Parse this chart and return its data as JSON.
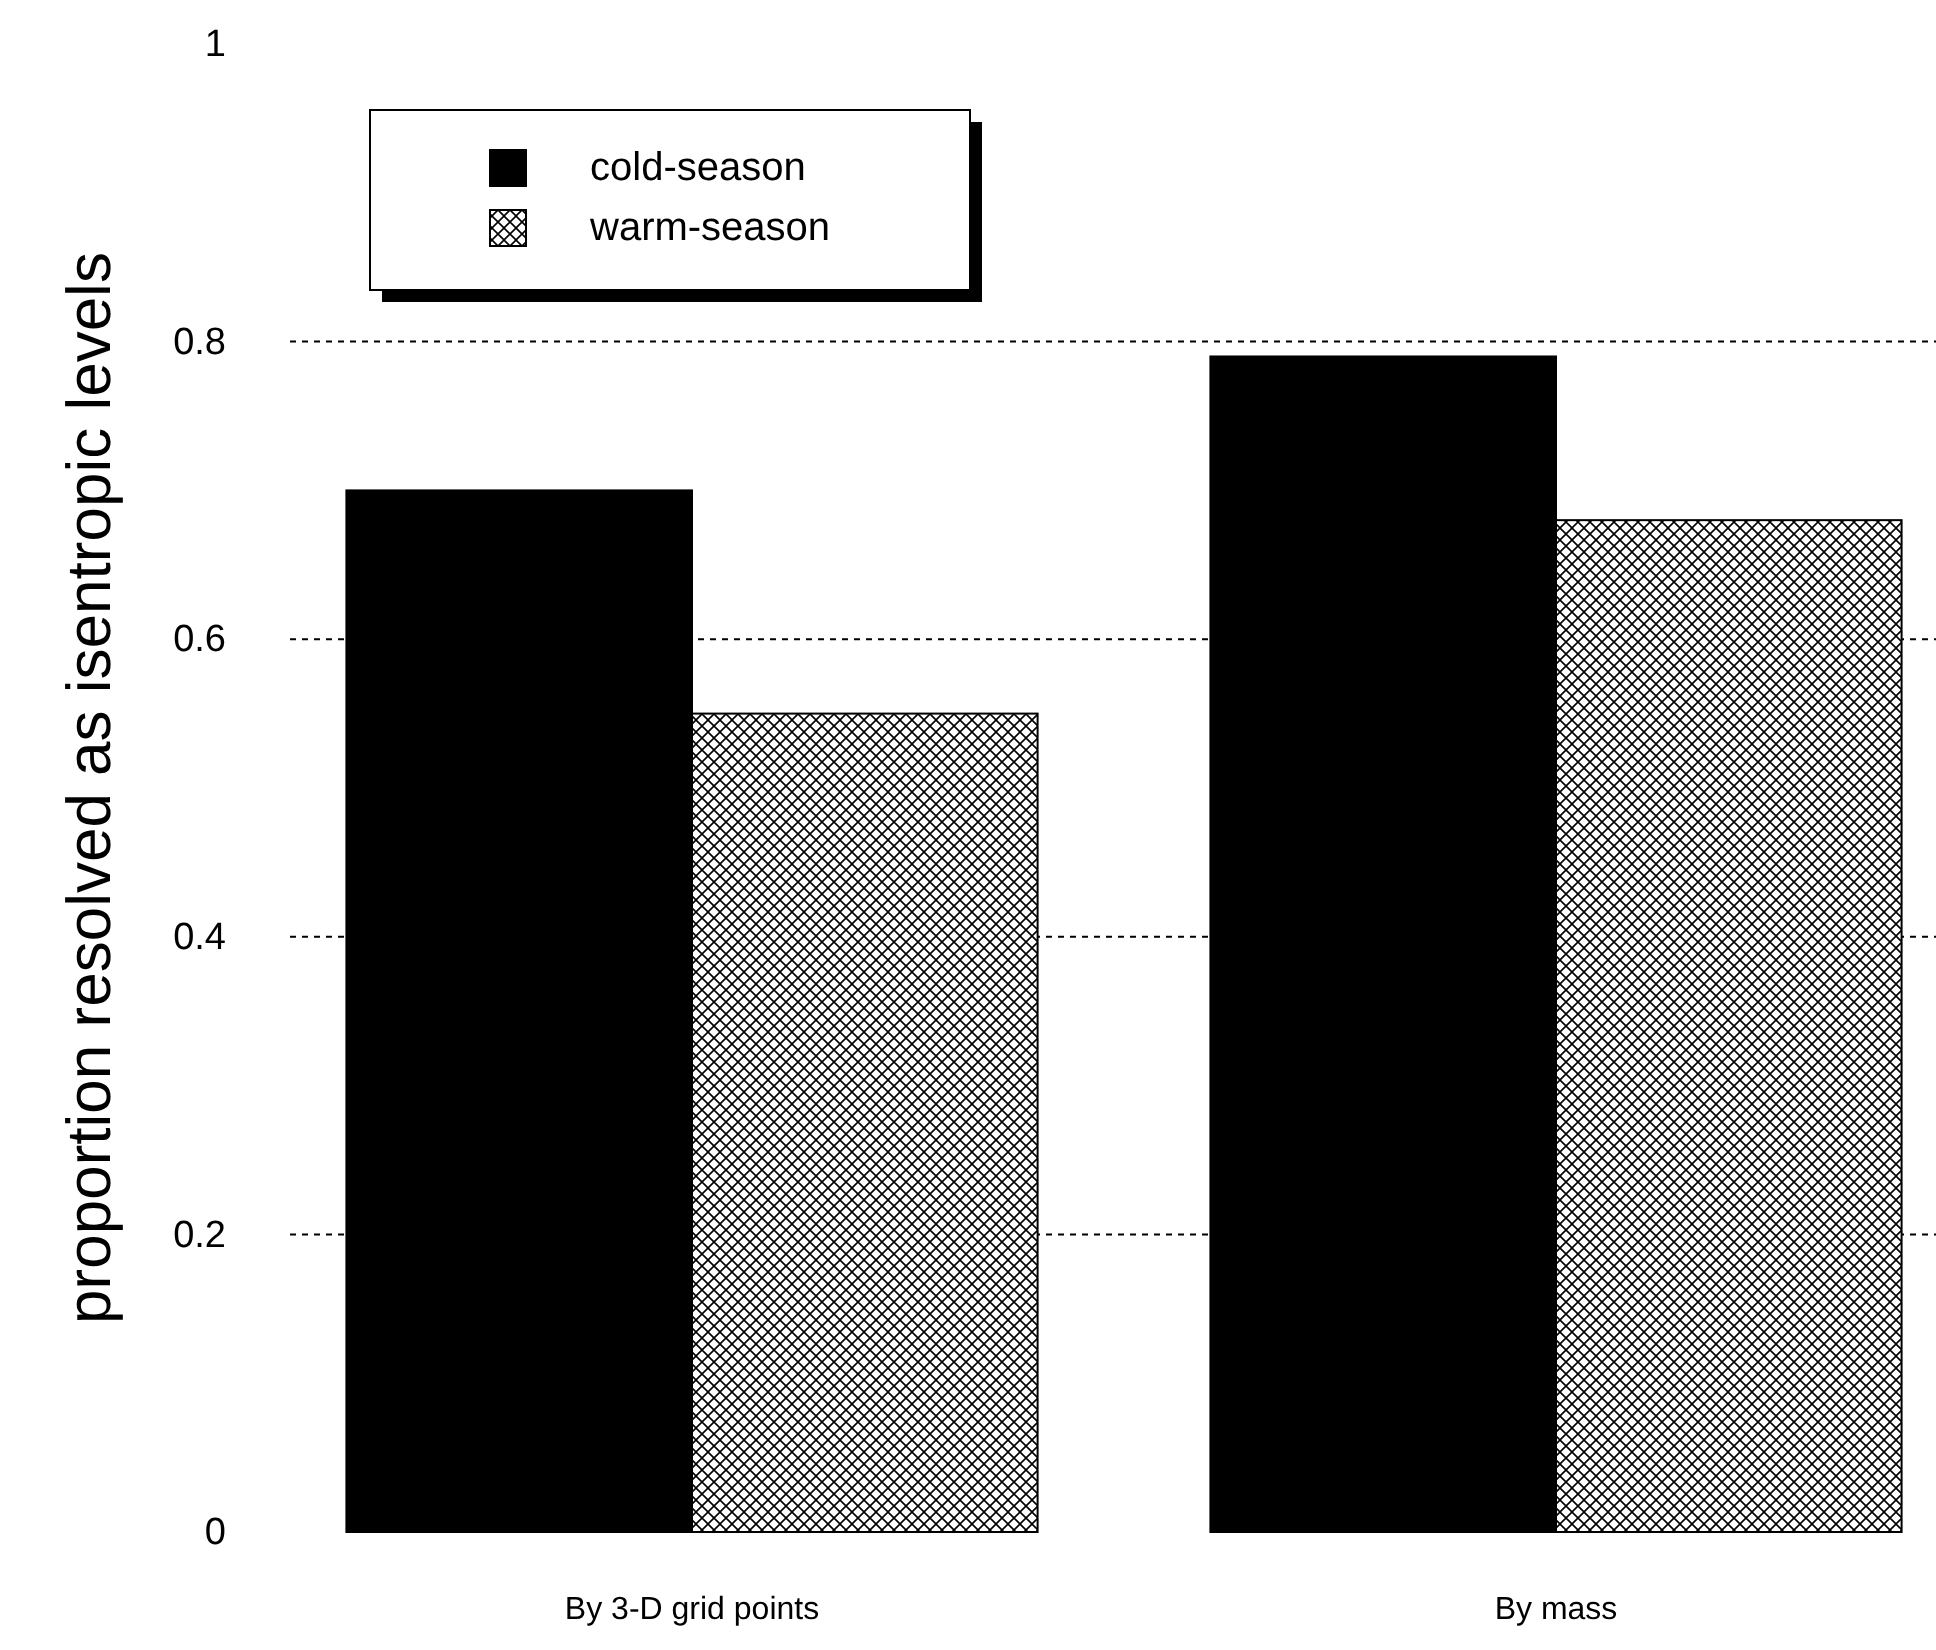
{
  "chart_data": {
    "type": "bar",
    "ylabel": "proportion resolved as isentropic levels",
    "categories": [
      "By 3-D grid points",
      "By mass"
    ],
    "series": [
      {
        "name": "cold-season",
        "color": "#000000",
        "values": [
          0.7,
          0.79
        ]
      },
      {
        "name": "warm-season",
        "color": "#000000",
        "values": [
          0.55,
          0.68
        ]
      }
    ],
    "ylim": [
      0,
      1
    ],
    "yticks": [
      {
        "value": 0,
        "label": "0"
      },
      {
        "value": 0.2,
        "label": "0.2"
      },
      {
        "value": 0.4,
        "label": "0.4"
      },
      {
        "value": 0.6,
        "label": "0.6"
      },
      {
        "value": 0.8,
        "label": "0.8"
      },
      {
        "value": 1,
        "label": "1"
      }
    ],
    "grid": "y",
    "legend": "top left"
  }
}
